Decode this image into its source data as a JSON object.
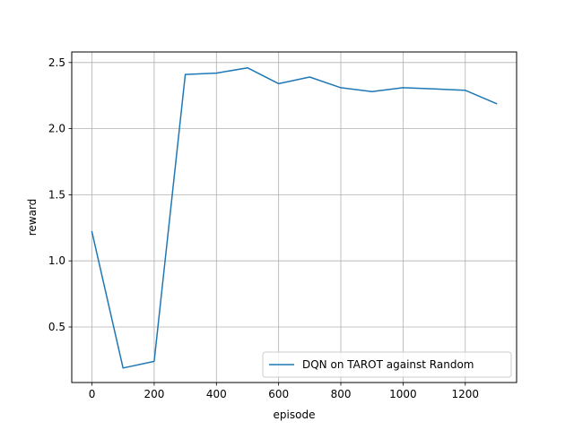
{
  "chart_data": {
    "type": "line",
    "title": "",
    "xlabel": "episode",
    "ylabel": "reward",
    "xlim": [
      -65,
      1365
    ],
    "ylim": [
      0.08,
      2.58
    ],
    "xticks": [
      0,
      200,
      400,
      600,
      800,
      1000,
      1200
    ],
    "xtick_labels": [
      "0",
      "200",
      "400",
      "600",
      "800",
      "1000",
      "1200"
    ],
    "yticks": [
      0.5,
      1.0,
      1.5,
      2.0,
      2.5
    ],
    "ytick_labels": [
      "0.5",
      "1.0",
      "1.5",
      "2.0",
      "2.5"
    ],
    "grid": true,
    "legend_position": "lower-right",
    "series": [
      {
        "name": "DQN on TAROT against Random",
        "color": "#1f77b4",
        "x": [
          0,
          100,
          200,
          300,
          400,
          500,
          600,
          700,
          800,
          900,
          1000,
          1100,
          1200,
          1300
        ],
        "y": [
          1.22,
          0.19,
          0.24,
          2.41,
          2.42,
          2.46,
          2.34,
          2.39,
          2.31,
          2.28,
          2.31,
          2.3,
          2.29,
          2.19
        ]
      }
    ]
  }
}
